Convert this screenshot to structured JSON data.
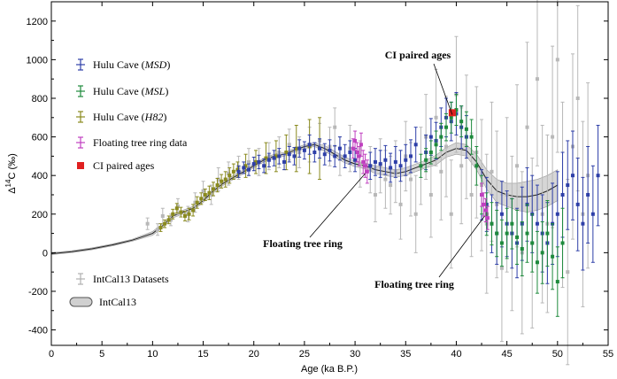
{
  "chart_data": {
    "type": "scatter",
    "title": "",
    "xlabel": "Age (ka B.P.)",
    "ylabel": "Δ14C (‰)",
    "ylabel_parts": {
      "prefix": "Δ",
      "sup": "14",
      "suffix": "C (‰)"
    },
    "xlim": [
      0,
      55
    ],
    "ylim": [
      -480,
      1300
    ],
    "x_ticks": [
      0,
      5,
      10,
      15,
      20,
      25,
      30,
      35,
      40,
      45,
      50,
      55
    ],
    "x_tick_labels": [
      "0",
      "5",
      "10",
      "15",
      "20",
      "25",
      "30",
      "35",
      "40",
      "45",
      "50",
      "55"
    ],
    "y_ticks": [
      -400,
      -200,
      0,
      200,
      400,
      600,
      800,
      1000,
      1200
    ],
    "y_tick_labels": [
      "-400",
      "-200",
      "0",
      "200",
      "400",
      "600",
      "800",
      "1000",
      "1200"
    ],
    "grid": false,
    "legend_position": "left",
    "legend": [
      {
        "label": "Hulu Cave (",
        "label_italic": "MSD",
        "label_end": ")",
        "color": "#2e3fa8",
        "marker": "errorbar"
      },
      {
        "label": "Hulu Cave (",
        "label_italic": "MSL",
        "label_end": ")",
        "color": "#1e8a3c",
        "marker": "errorbar"
      },
      {
        "label": "Hulu Cave (",
        "label_italic": "H82",
        "label_end": ")",
        "color": "#8a8a1e",
        "marker": "errorbar"
      },
      {
        "label": "Floating tree ring data",
        "label_italic": "",
        "label_end": "",
        "color": "#c040c0",
        "marker": "errorbar"
      },
      {
        "label": "CI paired ages",
        "label_italic": "",
        "label_end": "",
        "color": "#e02020",
        "marker": "square"
      },
      {
        "label": "IntCal13 Datasets",
        "label_italic": "",
        "label_end": "",
        "color": "#b0b0b0",
        "marker": "errorbar"
      },
      {
        "label": "IntCal13",
        "label_italic": "",
        "label_end": "",
        "color": "#808080",
        "marker": "band"
      }
    ],
    "annotations": [
      {
        "text": "CI paired ages",
        "target_x": 39.6,
        "target_y": 715
      },
      {
        "text": "Floating tree ring",
        "target_x": 31.0,
        "target_y": 410
      },
      {
        "text": "Floating tree ring",
        "target_x": 42.8,
        "target_y": 190
      }
    ],
    "series": [
      {
        "name": "IntCal13",
        "kind": "band",
        "color": "#555555",
        "fill": "#d0d0d0",
        "x": [
          0,
          2,
          4,
          6,
          8,
          10,
          11,
          12,
          13,
          14,
          15,
          16,
          17,
          18,
          19,
          20,
          21,
          22,
          23,
          24,
          25,
          26,
          27,
          28,
          29,
          30,
          31,
          32,
          33,
          34,
          35,
          36,
          37,
          38,
          39,
          40,
          41,
          42,
          43,
          44,
          45,
          46,
          47,
          48,
          49,
          50
        ],
        "y": [
          -5,
          5,
          20,
          40,
          65,
          100,
          140,
          190,
          210,
          230,
          270,
          320,
          360,
          390,
          420,
          450,
          480,
          500,
          510,
          530,
          550,
          560,
          540,
          510,
          480,
          460,
          450,
          430,
          420,
          410,
          420,
          440,
          460,
          480,
          520,
          540,
          530,
          470,
          380,
          320,
          300,
          290,
          290,
          300,
          320,
          350
        ],
        "upper": [
          0,
          10,
          25,
          45,
          70,
          110,
          150,
          200,
          220,
          240,
          280,
          330,
          370,
          400,
          430,
          460,
          490,
          510,
          520,
          540,
          560,
          570,
          555,
          525,
          495,
          475,
          465,
          450,
          440,
          430,
          440,
          460,
          480,
          505,
          545,
          570,
          560,
          510,
          430,
          380,
          360,
          360,
          370,
          380,
          400,
          430
        ],
        "lower": [
          -10,
          0,
          15,
          35,
          60,
          90,
          130,
          180,
          200,
          220,
          260,
          310,
          350,
          380,
          410,
          440,
          470,
          490,
          500,
          520,
          540,
          550,
          525,
          495,
          465,
          445,
          435,
          410,
          400,
          390,
          400,
          420,
          440,
          455,
          495,
          510,
          500,
          430,
          330,
          260,
          240,
          220,
          210,
          220,
          240,
          270
        ]
      },
      {
        "name": "IntCal13 Datasets",
        "kind": "errorbar",
        "color": "#b8b8b8",
        "x": [
          9.5,
          10.5,
          11.0,
          11.8,
          12.5,
          13.5,
          14.2,
          15.0,
          15.8,
          16.5,
          17.5,
          18.5,
          19.5,
          20.5,
          21.5,
          22.5,
          23.5,
          24.5,
          25.5,
          26.5,
          27.5,
          28.0,
          28.5,
          29.5,
          30.5,
          31.5,
          32.0,
          32.5,
          33.0,
          33.5,
          34.0,
          34.5,
          35.0,
          35.5,
          36.0,
          36.5,
          37.0,
          37.5,
          38.0,
          38.5,
          39.0,
          39.5,
          40.0,
          40.5,
          41.0,
          41.5,
          42.0,
          42.5,
          43.0,
          43.5,
          44.0,
          44.5,
          45.0,
          45.5,
          46.0,
          46.5,
          47.0,
          47.5,
          48.0,
          48.5,
          49.0,
          49.5,
          50.0,
          50.5,
          51.0,
          51.5,
          52.0,
          52.5,
          53.0
        ],
        "y": [
          150,
          120,
          190,
          170,
          240,
          200,
          260,
          320,
          300,
          380,
          410,
          440,
          470,
          470,
          500,
          520,
          560,
          520,
          560,
          580,
          550,
          650,
          500,
          540,
          460,
          430,
          300,
          450,
          380,
          350,
          420,
          250,
          500,
          380,
          200,
          450,
          600,
          300,
          700,
          420,
          550,
          200,
          820,
          450,
          600,
          300,
          520,
          350,
          150,
          420,
          250,
          -80,
          300,
          100,
          450,
          0,
          650,
          50,
          900,
          200,
          150,
          600,
          1000,
          300,
          -100,
          550,
          800,
          200,
          400
        ],
        "err": [
          30,
          30,
          40,
          30,
          40,
          40,
          50,
          50,
          50,
          60,
          60,
          60,
          70,
          70,
          70,
          80,
          80,
          80,
          90,
          90,
          100,
          100,
          100,
          120,
          120,
          120,
          140,
          140,
          150,
          150,
          160,
          180,
          180,
          190,
          200,
          200,
          220,
          220,
          250,
          250,
          260,
          280,
          300,
          300,
          320,
          320,
          340,
          340,
          360,
          360,
          380,
          380,
          400,
          400,
          420,
          420,
          440,
          440,
          450,
          460,
          460,
          470,
          480,
          480,
          480,
          480,
          480,
          480,
          480
        ]
      },
      {
        "name": "Hulu Cave (H82)",
        "kind": "errorbar",
        "color": "#8a8a1e",
        "x": [
          10.8,
          11.2,
          11.6,
          12.0,
          12.4,
          12.8,
          13.2,
          13.6,
          14.0,
          14.4,
          14.8,
          15.2,
          15.6,
          16.0,
          16.4,
          16.8,
          17.2,
          17.6,
          18.0,
          18.4,
          19.2,
          20.2,
          21.2,
          22.2,
          23.2,
          24.2,
          25.5,
          26.5
        ],
        "y": [
          130,
          150,
          170,
          200,
          230,
          210,
          190,
          200,
          220,
          260,
          280,
          300,
          310,
          330,
          350,
          370,
          380,
          400,
          420,
          430,
          450,
          470,
          490,
          500,
          520,
          540,
          550,
          540
        ],
        "err": [
          20,
          20,
          20,
          25,
          25,
          25,
          25,
          30,
          30,
          30,
          30,
          30,
          35,
          35,
          35,
          35,
          40,
          40,
          40,
          40,
          60,
          60,
          80,
          80,
          90,
          120,
          140,
          160
        ]
      },
      {
        "name": "Hulu Cave (MSD)",
        "kind": "errorbar",
        "color": "#2e3fa8",
        "x": [
          18.5,
          19.0,
          19.5,
          20.0,
          20.5,
          21.0,
          21.5,
          22.0,
          22.5,
          23.0,
          23.5,
          24.0,
          24.5,
          25.0,
          25.5,
          26.0,
          26.5,
          27.0,
          27.5,
          28.0,
          28.5,
          29.0,
          29.5,
          30.0,
          31.5,
          32.0,
          32.5,
          33.0,
          33.5,
          34.0,
          34.5,
          35.0,
          35.5,
          36.0,
          37.0,
          37.5,
          38.0,
          38.5,
          39.0,
          39.5,
          40.0,
          40.5,
          41.0,
          42.5,
          43.0,
          43.5,
          44.0,
          44.5,
          45.0,
          45.5,
          46.0,
          46.5,
          47.0,
          47.5,
          48.0,
          48.5,
          49.0,
          49.5,
          50.0,
          50.5,
          51.0,
          51.5,
          52.0,
          52.5,
          53.0,
          53.5,
          54.0
        ],
        "y": [
          420,
          440,
          430,
          460,
          470,
          450,
          480,
          490,
          500,
          470,
          510,
          500,
          540,
          530,
          560,
          520,
          540,
          510,
          530,
          500,
          540,
          500,
          520,
          480,
          450,
          470,
          460,
          480,
          440,
          470,
          450,
          480,
          500,
          560,
          520,
          600,
          580,
          650,
          700,
          680,
          720,
          650,
          600,
          300,
          250,
          150,
          100,
          200,
          150,
          100,
          50,
          150,
          250,
          200,
          150,
          100,
          50,
          150,
          200,
          300,
          350,
          400,
          250,
          150,
          300,
          200,
          400
        ],
        "err": [
          30,
          30,
          30,
          35,
          35,
          35,
          35,
          40,
          40,
          40,
          40,
          45,
          45,
          45,
          50,
          50,
          50,
          55,
          55,
          55,
          60,
          60,
          60,
          60,
          70,
          70,
          70,
          75,
          75,
          80,
          80,
          80,
          85,
          90,
          90,
          95,
          95,
          100,
          100,
          100,
          110,
          110,
          110,
          130,
          140,
          150,
          160,
          170,
          170,
          180,
          180,
          190,
          190,
          200,
          200,
          200,
          210,
          210,
          220,
          220,
          230,
          230,
          240,
          240,
          250,
          250,
          260
        ]
      },
      {
        "name": "Hulu Cave (MSL)",
        "kind": "errorbar",
        "color": "#1e8a3c",
        "x": [
          36.5,
          37.0,
          37.5,
          38.0,
          38.5,
          39.0,
          39.5,
          40.0,
          40.5,
          41.0,
          41.5,
          42.0,
          42.5,
          43.0,
          43.5,
          44.0,
          44.5,
          45.0,
          45.5,
          46.0,
          46.5,
          47.0,
          47.5,
          48.0,
          48.5,
          49.0,
          49.5,
          50.0,
          50.5
        ],
        "y": [
          450,
          480,
          520,
          560,
          600,
          650,
          700,
          740,
          680,
          640,
          600,
          450,
          300,
          200,
          150,
          100,
          50,
          100,
          150,
          80,
          20,
          100,
          50,
          -50,
          0,
          100,
          -20,
          -150,
          50
        ],
        "err": [
          60,
          60,
          60,
          70,
          70,
          70,
          80,
          80,
          80,
          90,
          90,
          100,
          100,
          110,
          110,
          120,
          120,
          130,
          130,
          140,
          140,
          150,
          150,
          160,
          160,
          170,
          170,
          180,
          180
        ]
      },
      {
        "name": "Floating tree ring data",
        "kind": "errorbar",
        "color": "#c040c0",
        "x": [
          29.8,
          30.0,
          30.2,
          30.4,
          30.6,
          30.8,
          31.0,
          31.2,
          42.5,
          42.7,
          42.9,
          43.1
        ],
        "y": [
          540,
          580,
          520,
          500,
          560,
          470,
          450,
          420,
          300,
          250,
          220,
          180
        ],
        "err": [
          50,
          50,
          50,
          50,
          60,
          60,
          60,
          60,
          60,
          60,
          60,
          60
        ]
      },
      {
        "name": "CI paired ages",
        "kind": "square",
        "color": "#e02020",
        "x": [
          39.6
        ],
        "y": [
          725
        ]
      }
    ]
  }
}
